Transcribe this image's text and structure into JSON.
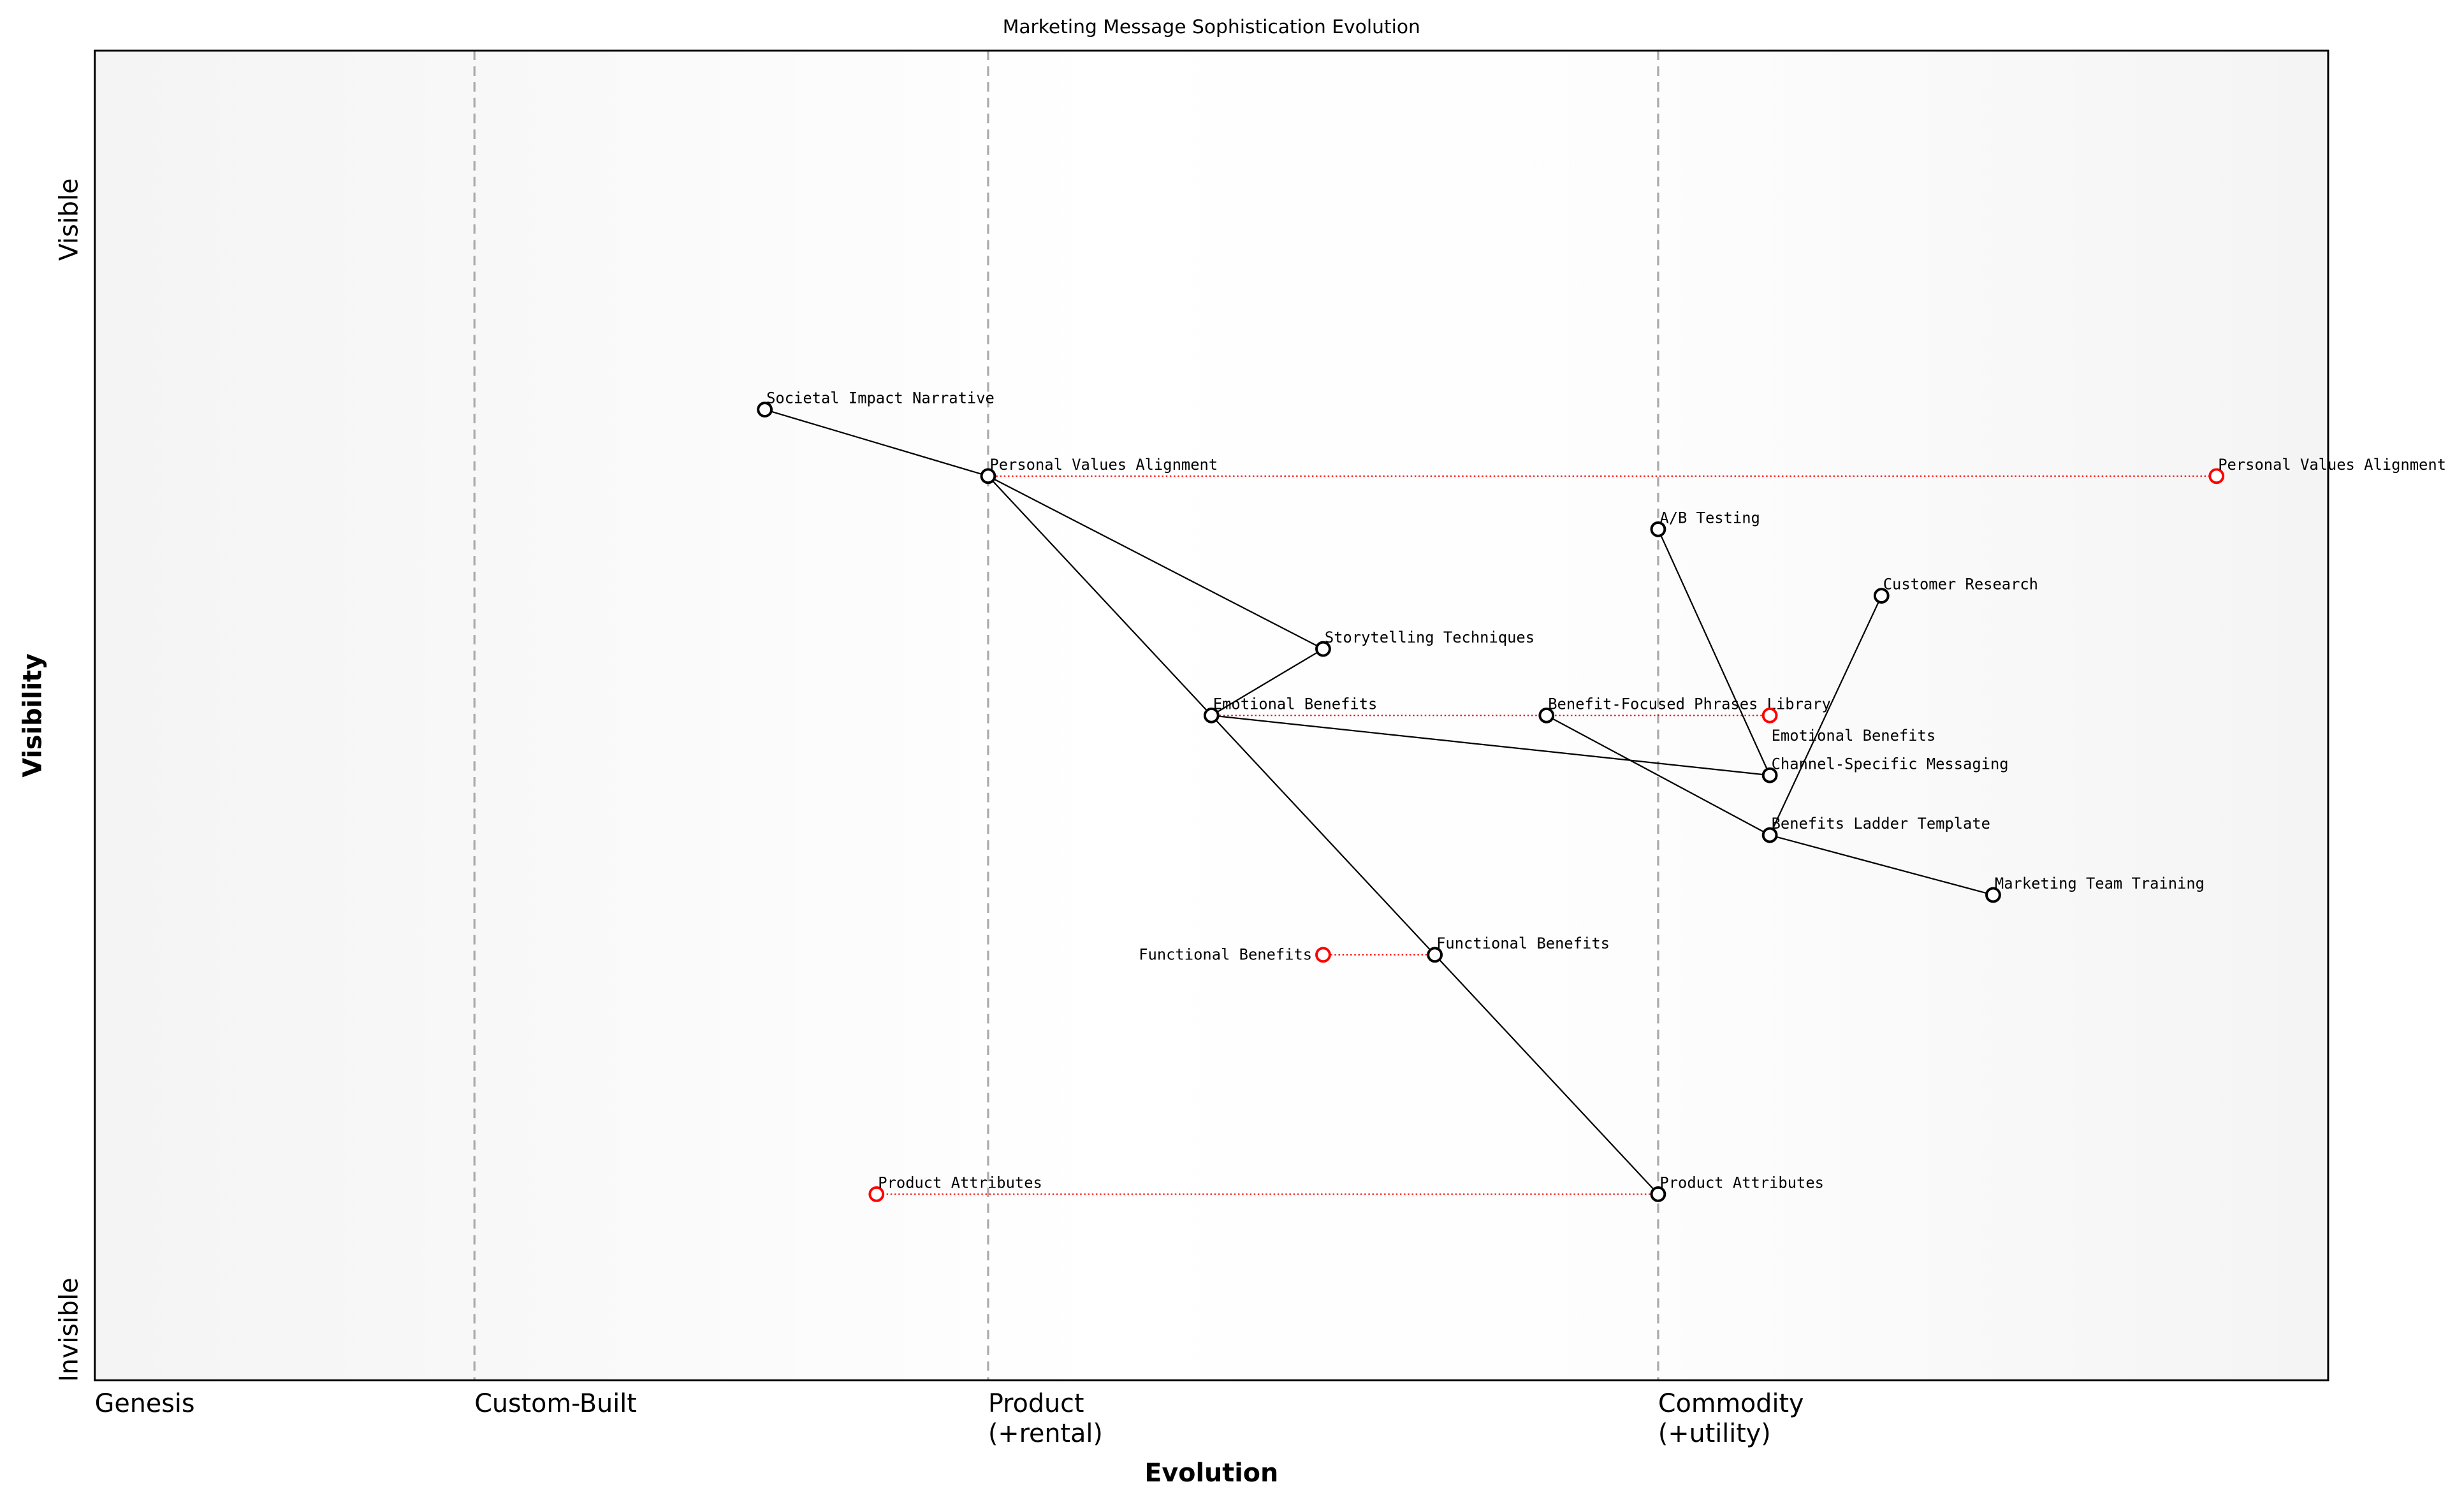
{
  "chart_data": {
    "type": "wardley-map",
    "title": "Marketing Message Sophistication Evolution",
    "xlabel": "Evolution",
    "ylabel": "Visibility",
    "xlim": [
      0,
      1
    ],
    "ylim": [
      0,
      1
    ],
    "x_stage_labels": [
      {
        "label": "Genesis",
        "x": 0.0
      },
      {
        "label": "Custom-Built",
        "x": 0.17
      },
      {
        "label": "Product\n(+rental)",
        "x": 0.4
      },
      {
        "label": "Commodity\n(+utility)",
        "x": 0.7
      }
    ],
    "y_labels": {
      "top": "Visible",
      "bottom": "Invisible"
    },
    "colors": {
      "component": "#000000",
      "evolved": "#ff0000",
      "stage_line": "#aaaaaa",
      "edge_background": "#f5f5f5"
    },
    "components": [
      {
        "id": "sin",
        "name": "Societal Impact Narrative",
        "x": 0.3,
        "y": 0.73
      },
      {
        "id": "pva",
        "name": "Personal Values Alignment",
        "x": 0.4,
        "y": 0.68
      },
      {
        "id": "ab",
        "name": "A/B Testing",
        "x": 0.7,
        "y": 0.64
      },
      {
        "id": "cr",
        "name": "Customer Research",
        "x": 0.8,
        "y": 0.59
      },
      {
        "id": "st",
        "name": "Storytelling Techniques",
        "x": 0.55,
        "y": 0.55
      },
      {
        "id": "eb",
        "name": "Emotional Benefits",
        "x": 0.5,
        "y": 0.5
      },
      {
        "id": "bfp",
        "name": "Benefit-Focused Phrases Library",
        "x": 0.65,
        "y": 0.5
      },
      {
        "id": "csm",
        "name": "Channel-Specific Messaging",
        "x": 0.75,
        "y": 0.455
      },
      {
        "id": "blt",
        "name": "Benefits Ladder Template",
        "x": 0.75,
        "y": 0.41
      },
      {
        "id": "mtt",
        "name": "Marketing Team Training",
        "x": 0.85,
        "y": 0.365
      },
      {
        "id": "fb",
        "name": "Functional Benefits",
        "x": 0.6,
        "y": 0.32
      },
      {
        "id": "pa",
        "name": "Product Attributes",
        "x": 0.7,
        "y": 0.14
      }
    ],
    "evolved_components": [
      {
        "from": "pva",
        "name": "Personal Values Alignment",
        "x": 0.95,
        "y": 0.68
      },
      {
        "from": "eb",
        "name": "Emotional Benefits",
        "x": 0.75,
        "y": 0.5
      },
      {
        "from": "fb",
        "name": "Functional Benefits",
        "x": 0.55,
        "y": 0.32
      },
      {
        "from": "pa",
        "name": "Product Attributes",
        "x": 0.35,
        "y": 0.14
      }
    ],
    "links": [
      [
        "sin",
        "pva"
      ],
      [
        "pva",
        "st"
      ],
      [
        "pva",
        "eb"
      ],
      [
        "eb",
        "st"
      ],
      [
        "eb",
        "csm"
      ],
      [
        "eb",
        "fb"
      ],
      [
        "fb",
        "pa"
      ],
      [
        "ab",
        "csm"
      ],
      [
        "cr",
        "blt"
      ],
      [
        "bfp",
        "blt"
      ],
      [
        "blt",
        "mtt"
      ]
    ]
  }
}
